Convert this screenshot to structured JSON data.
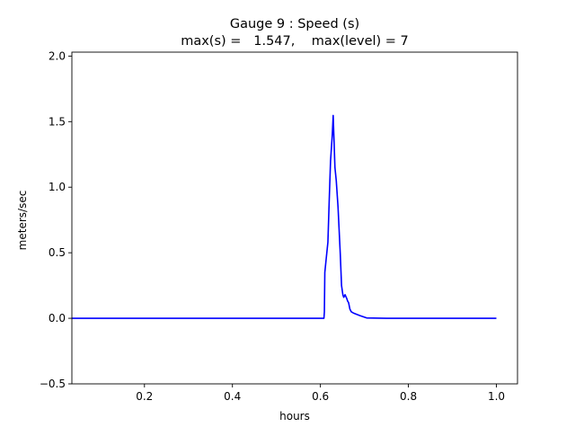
{
  "chart_data": {
    "type": "line",
    "title_line1": "Gauge 9 : Speed (s)",
    "title_line2": "max(s) =   1.547,    max(level) = 7",
    "xlabel": "hours",
    "ylabel": "meters/sec",
    "xlim": [
      0.035,
      1.048
    ],
    "ylim": [
      -0.5,
      2.03
    ],
    "xticks": [
      0.2,
      0.4,
      0.6,
      0.8,
      1.0
    ],
    "xtick_labels": [
      "0.2",
      "0.4",
      "0.6",
      "0.8",
      "1.0"
    ],
    "yticks": [
      -0.5,
      0.0,
      0.5,
      1.0,
      1.5,
      2.0
    ],
    "ytick_labels": [
      "−0.5",
      "0.0",
      "0.5",
      "1.0",
      "1.5",
      "2.0"
    ],
    "grid": false,
    "line_color": "#0000ff",
    "series": [
      {
        "x": [
          0.035,
          0.3,
          0.5,
          0.608,
          0.609,
          0.61,
          0.613,
          0.617,
          0.62,
          0.623,
          0.627,
          0.629,
          0.631,
          0.633,
          0.636,
          0.64,
          0.645,
          0.648,
          0.651,
          0.653,
          0.656,
          0.66,
          0.662,
          0.664,
          0.667,
          0.67,
          0.675,
          0.69,
          0.705,
          0.75,
          0.85,
          1.0
        ],
        "y": [
          0.0,
          0.0,
          0.0,
          0.0,
          0.05,
          0.35,
          0.45,
          0.58,
          0.9,
          1.2,
          1.4,
          1.547,
          1.35,
          1.15,
          1.05,
          0.85,
          0.5,
          0.25,
          0.18,
          0.16,
          0.18,
          0.15,
          0.13,
          0.12,
          0.07,
          0.05,
          0.04,
          0.02,
          0.003,
          0.0,
          0.0,
          0.0
        ]
      }
    ]
  }
}
